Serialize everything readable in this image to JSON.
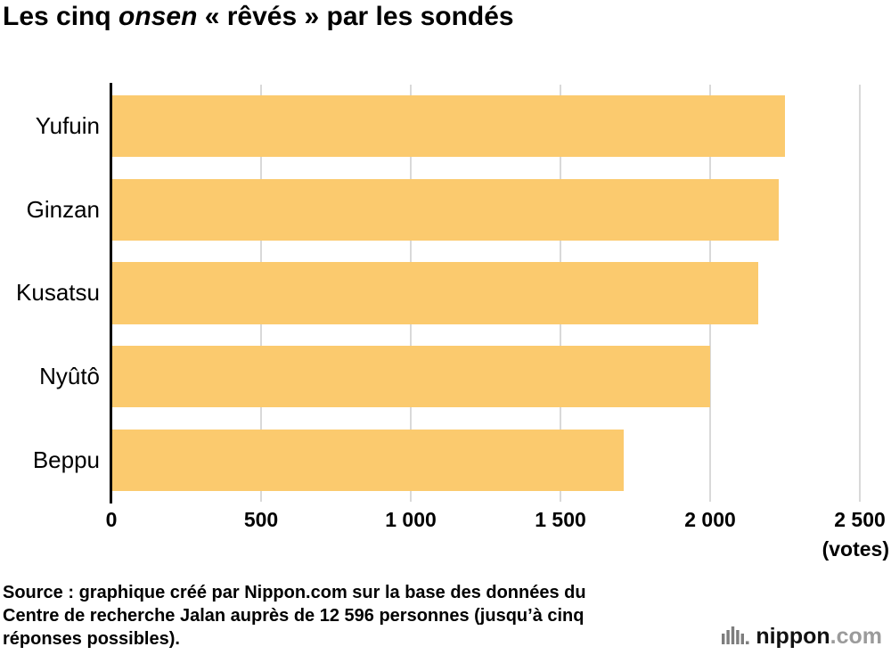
{
  "title": {
    "part1": "Les cinq ",
    "italic": "onsen",
    "part2": " « rêvés » par les sondés"
  },
  "chart_data": {
    "type": "bar",
    "orientation": "horizontal",
    "title": "Les cinq onsen « rêvés » par les sondés",
    "categories": [
      "Yufuin",
      "Ginzan",
      "Kusatsu",
      "Nyûtô",
      "Beppu"
    ],
    "values": [
      2250,
      2230,
      2160,
      2000,
      1710
    ],
    "xlim": [
      0,
      2500
    ],
    "x_ticks": [
      0,
      500,
      1000,
      1500,
      2000,
      2500
    ],
    "x_tick_labels": [
      "0",
      "500",
      "1 000",
      "1 500",
      "2 000",
      "2 500"
    ],
    "x_unit_label": "(votes)",
    "bar_color": "#fbca6e",
    "gridline_color": "#d9d9d9",
    "grid": true,
    "legend": false
  },
  "source": {
    "line1": "Source : graphique créé par Nippon.com sur la base des données du",
    "line2": "Centre de recherche Jalan auprès de 12 596 personnes (jusqu’à cinq",
    "line3": "réponses possibles)."
  },
  "logo": {
    "name": "nippon",
    "tld": ".com"
  }
}
